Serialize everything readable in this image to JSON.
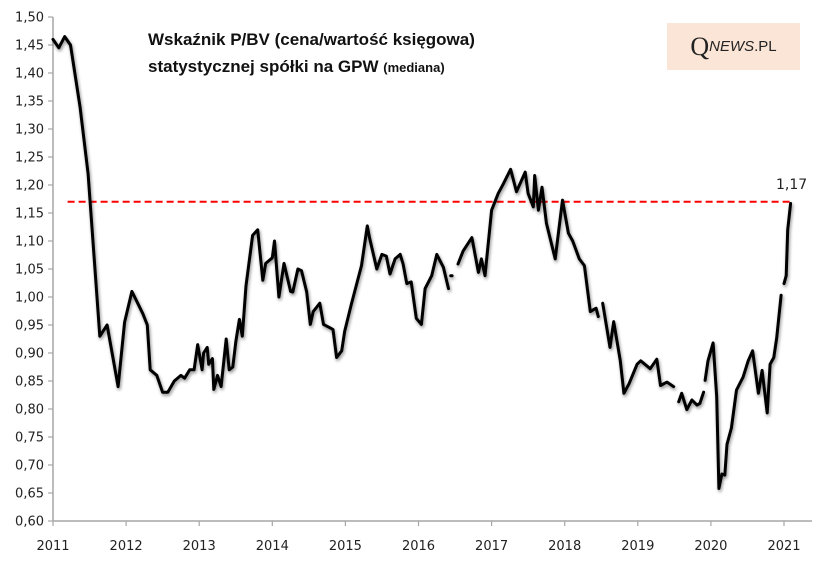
{
  "title": {
    "line1": "Wskaźnik P/BV (cena/wartość księgowa)",
    "line2_main": "statystycznej spółki na GPW",
    "line2_small": "(mediana)"
  },
  "logo": {
    "q": "Q",
    "news": "NEWS",
    "pl": ".PL",
    "background": "#fbe5d6"
  },
  "chart_data": {
    "type": "line",
    "title": "Wskaźnik P/BV (cena/wartość księgowa) statystycznej spółki na GPW (mediana)",
    "xlabel": "",
    "ylabel": "",
    "xlim": [
      2011,
      2021.38
    ],
    "ylim": [
      0.6,
      1.5
    ],
    "grid": false,
    "x_ticks": [
      "2011",
      "2012",
      "2013",
      "2014",
      "2015",
      "2016",
      "2017",
      "2018",
      "2019",
      "2020",
      "2021"
    ],
    "y_ticks": [
      "0,60",
      "0,65",
      "0,70",
      "0,75",
      "0,80",
      "0,85",
      "0,90",
      "0,95",
      "1,00",
      "1,05",
      "1,10",
      "1,15",
      "1,20",
      "1,25",
      "1,30",
      "1,35",
      "1,40",
      "1,45",
      "1,50"
    ],
    "line_color": "#000000",
    "reference_line": {
      "value": 1.17,
      "label": "1,17",
      "color": "#ff0000",
      "style": "dashed",
      "from": 2011.2,
      "to": 2021.09
    },
    "series": [
      {
        "points": [
          [
            2011.0,
            1.46
          ],
          [
            2011.08,
            1.445
          ],
          [
            2011.16,
            1.465
          ],
          [
            2011.24,
            1.45
          ],
          [
            2011.37,
            1.34
          ],
          [
            2011.48,
            1.22
          ],
          [
            2011.64,
            0.93
          ],
          [
            2011.74,
            0.95
          ],
          [
            2011.89,
            0.84
          ],
          [
            2011.98,
            0.955
          ],
          [
            2012.08,
            1.01
          ],
          [
            2012.23,
            0.97
          ],
          [
            2012.29,
            0.95
          ],
          [
            2012.33,
            0.87
          ],
          [
            2012.42,
            0.86
          ],
          [
            2012.5,
            0.83
          ],
          [
            2012.57,
            0.83
          ],
          [
            2012.66,
            0.85
          ],
          [
            2012.75,
            0.86
          ],
          [
            2012.8,
            0.855
          ],
          [
            2012.87,
            0.87
          ],
          [
            2012.93,
            0.87
          ],
          [
            2012.98,
            0.915
          ],
          [
            2013.04,
            0.87
          ],
          [
            2013.06,
            0.9
          ],
          [
            2013.11,
            0.91
          ],
          [
            2013.13,
            0.88
          ],
          [
            2013.18,
            0.89
          ],
          [
            2013.2,
            0.835
          ],
          [
            2013.25,
            0.86
          ],
          [
            2013.3,
            0.84
          ],
          [
            2013.37,
            0.925
          ],
          [
            2013.41,
            0.87
          ],
          [
            2013.46,
            0.875
          ],
          [
            2013.5,
            0.92
          ],
          [
            2013.55,
            0.96
          ],
          [
            2013.59,
            0.93
          ],
          [
            2013.64,
            1.02
          ],
          [
            2013.73,
            1.11
          ],
          [
            2013.8,
            1.12
          ],
          [
            2013.87,
            1.03
          ],
          [
            2013.91,
            1.06
          ],
          [
            2014.0,
            1.07
          ],
          [
            2014.03,
            1.1
          ],
          [
            2014.09,
            1.0
          ],
          [
            2014.16,
            1.06
          ],
          [
            2014.25,
            1.01
          ],
          [
            2014.28,
            1.009
          ],
          [
            2014.35,
            1.05
          ],
          [
            2014.4,
            1.047
          ],
          [
            2014.47,
            1.009
          ],
          [
            2014.52,
            0.951
          ],
          [
            2014.56,
            0.974
          ],
          [
            2014.65,
            0.989
          ],
          [
            2014.7,
            0.951
          ],
          [
            2014.79,
            0.945
          ],
          [
            2014.83,
            0.942
          ],
          [
            2014.88,
            0.892
          ],
          [
            2014.95,
            0.904
          ],
          [
            2014.99,
            0.939
          ],
          [
            2015.08,
            0.986
          ],
          [
            2015.22,
            1.056
          ],
          [
            2015.3,
            1.127
          ],
          [
            2015.33,
            1.106
          ],
          [
            2015.43,
            1.05
          ],
          [
            2015.5,
            1.076
          ],
          [
            2015.56,
            1.073
          ],
          [
            2015.61,
            1.041
          ],
          [
            2015.68,
            1.068
          ],
          [
            2015.75,
            1.076
          ],
          [
            2015.79,
            1.059
          ],
          [
            2015.84,
            1.024
          ],
          [
            2015.9,
            1.027
          ],
          [
            2015.97,
            0.962
          ],
          [
            2016.04,
            0.951
          ],
          [
            2016.09,
            1.015
          ],
          [
            2016.18,
            1.038
          ],
          [
            2016.25,
            1.076
          ],
          [
            2016.34,
            1.053
          ],
          [
            2016.41,
            1.015
          ],
          null,
          [
            2016.44,
            1.038
          ],
          [
            2016.46,
            1.038
          ],
          null,
          [
            2016.54,
            1.059
          ],
          [
            2016.61,
            1.082
          ],
          [
            2016.73,
            1.106
          ],
          [
            2016.82,
            1.044
          ],
          [
            2016.86,
            1.068
          ],
          [
            2016.91,
            1.038
          ],
          [
            2017.0,
            1.155
          ],
          [
            2017.09,
            1.185
          ],
          [
            2017.16,
            1.202
          ],
          [
            2017.26,
            1.228
          ],
          [
            2017.34,
            1.188
          ],
          [
            2017.46,
            1.223
          ],
          [
            2017.5,
            1.185
          ],
          [
            2017.57,
            1.161
          ],
          [
            2017.59,
            1.217
          ],
          [
            2017.64,
            1.155
          ],
          [
            2017.69,
            1.196
          ],
          [
            2017.75,
            1.132
          ],
          [
            2017.87,
            1.068
          ],
          [
            2017.97,
            1.173
          ],
          [
            2018.05,
            1.114
          ],
          [
            2018.11,
            1.1
          ],
          [
            2018.2,
            1.068
          ],
          [
            2018.27,
            1.056
          ],
          [
            2018.35,
            0.974
          ],
          [
            2018.43,
            0.98
          ],
          [
            2018.46,
            0.965
          ],
          null,
          [
            2018.52,
            0.989
          ],
          [
            2018.62,
            0.91
          ],
          [
            2018.67,
            0.956
          ],
          [
            2018.76,
            0.886
          ],
          [
            2018.81,
            0.828
          ],
          [
            2018.88,
            0.845
          ],
          [
            2018.99,
            0.88
          ],
          [
            2019.04,
            0.886
          ],
          [
            2019.17,
            0.872
          ],
          [
            2019.26,
            0.889
          ],
          [
            2019.31,
            0.842
          ],
          [
            2019.4,
            0.848
          ],
          [
            2019.49,
            0.84
          ],
          null,
          [
            2019.56,
            0.813
          ],
          [
            2019.6,
            0.828
          ],
          [
            2019.67,
            0.799
          ],
          [
            2019.74,
            0.816
          ],
          [
            2019.81,
            0.807
          ],
          [
            2019.85,
            0.81
          ],
          [
            2019.9,
            0.83
          ],
          null,
          [
            2019.92,
            0.851
          ],
          [
            2019.96,
            0.886
          ],
          [
            2020.03,
            0.918
          ],
          [
            2020.08,
            0.822
          ],
          [
            2020.11,
            0.658
          ],
          [
            2020.15,
            0.684
          ],
          [
            2020.19,
            0.682
          ],
          [
            2020.22,
            0.737
          ],
          [
            2020.28,
            0.766
          ],
          [
            2020.35,
            0.834
          ],
          [
            2020.44,
            0.857
          ],
          [
            2020.51,
            0.886
          ],
          [
            2020.57,
            0.904
          ],
          [
            2020.65,
            0.828
          ],
          [
            2020.7,
            0.869
          ],
          [
            2020.77,
            0.793
          ],
          [
            2020.81,
            0.88
          ],
          [
            2020.86,
            0.892
          ],
          [
            2020.9,
            0.927
          ],
          [
            2020.96,
            1.003
          ],
          null,
          [
            2021.0,
            1.024
          ],
          [
            2021.03,
            1.038
          ],
          [
            2021.05,
            1.12
          ],
          [
            2021.09,
            1.167
          ]
        ]
      }
    ]
  }
}
